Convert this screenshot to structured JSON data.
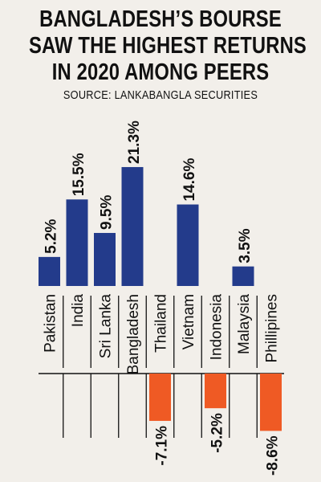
{
  "title_lines": [
    "BANGLADESH’S BOURSE",
    "SAW THE HIGHEST RETURNS",
    "IN 2020 AMONG PEERS"
  ],
  "source": "SOURCE: LANKABANGLA SECURITIES",
  "colors": {
    "positive": "#233b8b",
    "negative": "#ef5a24",
    "grid": "#111111",
    "background": "#f2efea"
  },
  "chart_data": {
    "type": "bar",
    "categories": [
      "Pakistan",
      "India",
      "Sri Lanka",
      "Bangladesh",
      "Thailand",
      "Vietnam",
      "Indonesia",
      "Malaysia",
      "Phillipines"
    ],
    "values": [
      5.2,
      15.5,
      9.5,
      21.3,
      -7.1,
      14.6,
      -5.2,
      3.5,
      -8.6
    ],
    "value_labels": [
      "5.2%",
      "15.5%",
      "9.5%",
      "21.3%",
      "-7.1%",
      "14.6%",
      "-5.2%",
      "3.5%",
      "-8.6%"
    ],
    "unit": "%",
    "title": "BANGLADESH’S BOURSE SAW THE HIGHEST RETURNS IN 2020 AMONG PEERS",
    "xlabel": "",
    "ylabel": "",
    "grid": false,
    "legend": "none"
  }
}
